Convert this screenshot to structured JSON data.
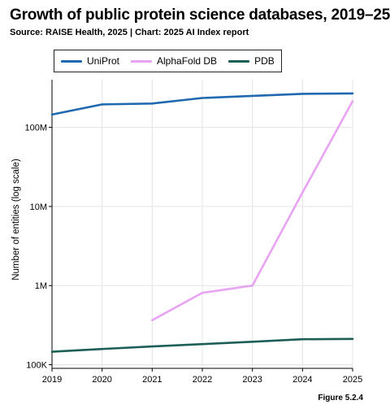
{
  "title": "Growth of public protein science databases, 2019–25",
  "subtitle": "Source: RAISE Health, 2025 | Chart: 2025 AI Index report",
  "figure_label": "Figure 5.2.4",
  "chart_data": {
    "type": "line",
    "title": "Growth of public protein science databases, 2019–25",
    "xlabel": "",
    "ylabel": "Number of entities (log scale)",
    "yscale": "log",
    "ylim": [
      90000,
      400000000
    ],
    "xlim": [
      2019,
      2025
    ],
    "x_ticks": [
      "2019",
      "2020",
      "2021",
      "2022",
      "2023",
      "2024",
      "2025"
    ],
    "y_ticks": [
      {
        "value": 100000,
        "label": "100K"
      },
      {
        "value": 1000000,
        "label": "1M"
      },
      {
        "value": 10000000,
        "label": "10M"
      },
      {
        "value": 100000000,
        "label": "100M"
      }
    ],
    "grid": true,
    "legend_position": "top-left",
    "series": [
      {
        "name": "UniProt",
        "color": "#2069b0",
        "points": [
          {
            "x": 2019,
            "y": 145000000
          },
          {
            "x": 2020,
            "y": 195000000
          },
          {
            "x": 2021,
            "y": 200000000
          },
          {
            "x": 2022,
            "y": 235000000
          },
          {
            "x": 2023,
            "y": 250000000
          },
          {
            "x": 2024,
            "y": 265000000
          },
          {
            "x": 2025,
            "y": 268000000
          }
        ]
      },
      {
        "name": "AlphaFold DB",
        "color": "#e8a3f3",
        "points": [
          {
            "x": 2021,
            "y": 365000
          },
          {
            "x": 2022,
            "y": 810000
          },
          {
            "x": 2023,
            "y": 1000000
          },
          {
            "x": 2024,
            "y": 15000000
          },
          {
            "x": 2025,
            "y": 214000000
          }
        ]
      },
      {
        "name": "PDB",
        "color": "#1c5f57",
        "points": [
          {
            "x": 2019,
            "y": 146000
          },
          {
            "x": 2020,
            "y": 158000
          },
          {
            "x": 2021,
            "y": 170000
          },
          {
            "x": 2022,
            "y": 182000
          },
          {
            "x": 2023,
            "y": 195000
          },
          {
            "x": 2024,
            "y": 210000
          },
          {
            "x": 2025,
            "y": 212000
          }
        ]
      }
    ]
  }
}
